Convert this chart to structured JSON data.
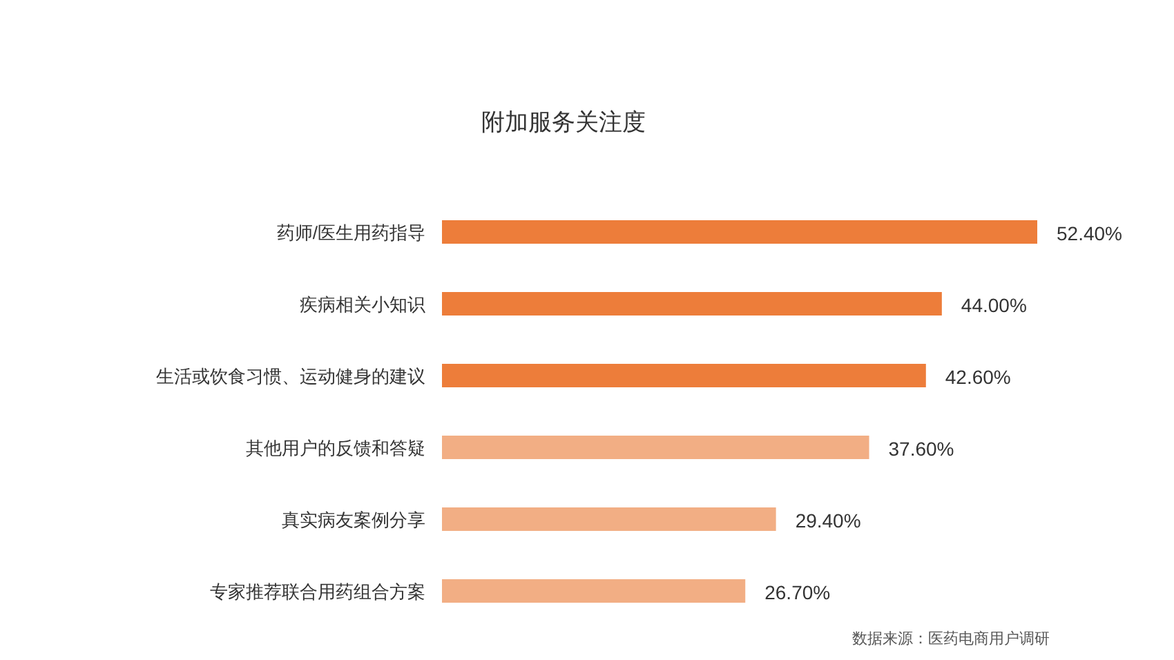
{
  "chart_data": {
    "type": "bar",
    "orientation": "horizontal",
    "title": "附加服务关注度",
    "categories": [
      "药师/医生用药指导",
      "疾病相关小知识",
      "生活或饮食习惯、运动健身的建议",
      "其他用户的反馈和答疑",
      "真实病友案例分享",
      "专家推荐联合用药组合方案"
    ],
    "values": [
      52.4,
      44.0,
      42.6,
      37.6,
      29.4,
      26.7
    ],
    "colors": [
      "#ed7d3a",
      "#ed7d3a",
      "#ed7d3a",
      "#f2ae84",
      "#f2ae84",
      "#f2ae84"
    ],
    "value_labels": [
      "52.40%",
      "44.00%",
      "42.60%",
      "37.60%",
      "29.40%",
      "26.70%"
    ],
    "tick_labels": "y",
    "annotations": [
      "数据来源：医药电商用户调研"
    ]
  }
}
